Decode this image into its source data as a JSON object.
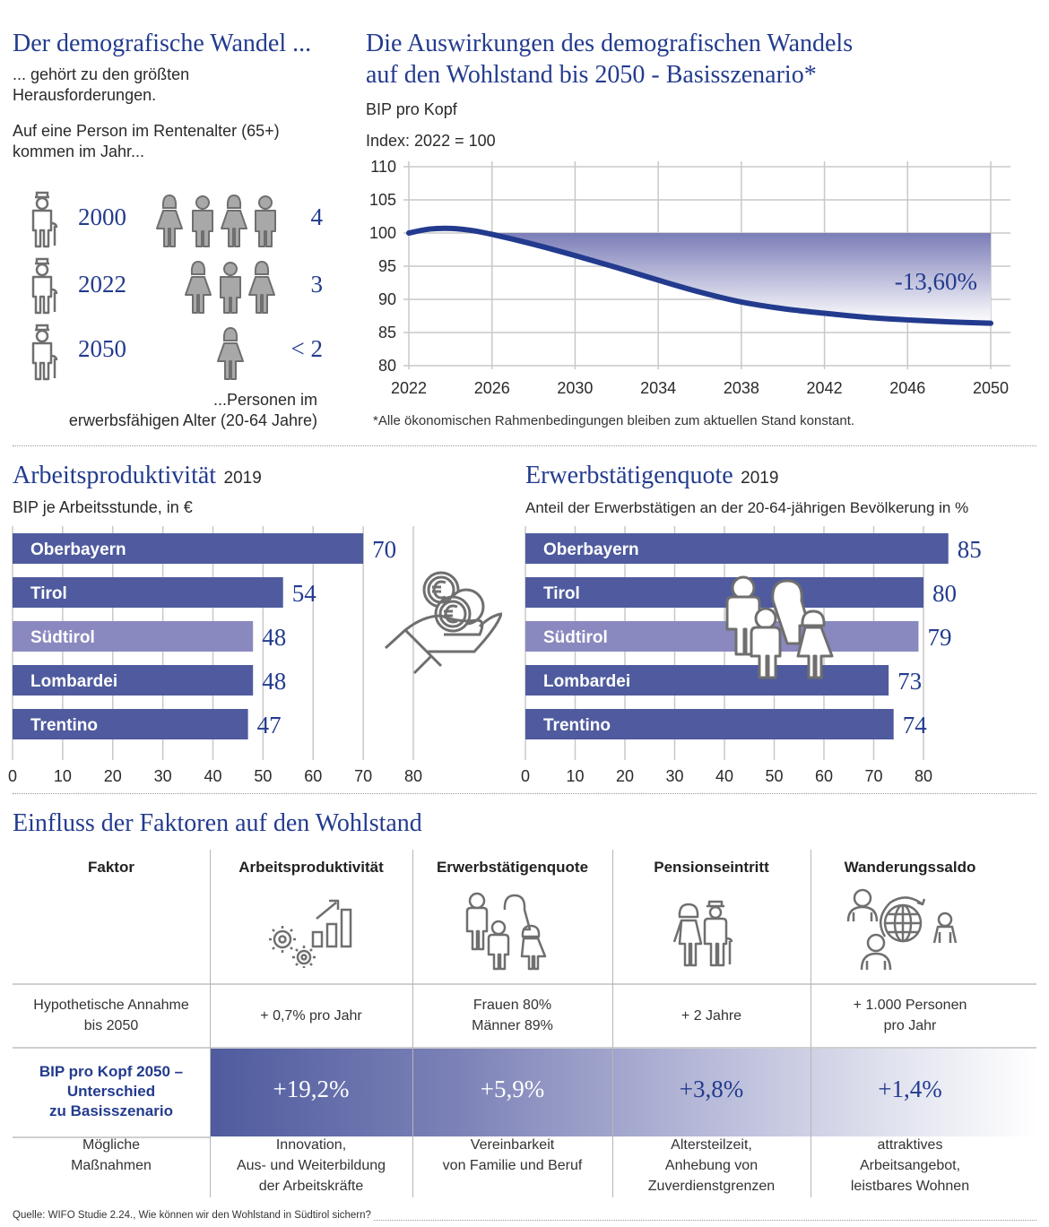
{
  "demografie": {
    "title": "Der demografische Wandel ...",
    "subtitle": "... gehört zu den größten Herausforderungen.",
    "subtitle_line1": "... gehört zu den größten",
    "subtitle_line2": "Herausforderungen.",
    "intro_line1": "Auf eine Person im Rentenalter (65+)",
    "intro_line2": "kommen im Jahr...",
    "rows": [
      {
        "year": "2000",
        "workers_icons": 4,
        "value": "4"
      },
      {
        "year": "2022",
        "workers_icons": 3,
        "value": "3"
      },
      {
        "year": "2050",
        "workers_icons": 1.5,
        "value": "< 2"
      }
    ],
    "footer_line1": "...Personen im",
    "footer_line2": "erwerbsfähigen Alter (20-64 Jahre)",
    "icon_retiree": "elderly-person-icon",
    "icon_worker": "working-age-person-icon"
  },
  "chart_data": [
    {
      "type": "area",
      "title": "Die Auswirkungen des demografischen Wandels auf den Wohlstand bis 2050 - Basisszenario*",
      "title_line1": "Die Auswirkungen des demografischen Wandels",
      "title_line2": "auf den Wohlstand bis 2050 - Basisszenario*",
      "subtitle": "BIP pro Kopf",
      "ylabel": "Index: 2022 = 100",
      "xlabel": "",
      "x": [
        2022,
        2023,
        2024,
        2025,
        2026,
        2028,
        2030,
        2032,
        2034,
        2036,
        2038,
        2040,
        2042,
        2044,
        2046,
        2048,
        2050
      ],
      "values": [
        100,
        100.6,
        100.7,
        100.4,
        99.8,
        98.3,
        96.6,
        94.8,
        92.9,
        91.1,
        89.6,
        88.6,
        87.9,
        87.3,
        86.9,
        86.6,
        86.4
      ],
      "reference_value": 100,
      "shaded_between_reference_and_line": true,
      "annotation": "-13,60%",
      "xticks": [
        "2022",
        "2026",
        "2030",
        "2034",
        "2038",
        "2042",
        "2046",
        "2050"
      ],
      "yticks": [
        "80",
        "85",
        "90",
        "95",
        "100",
        "105",
        "110"
      ],
      "xlim": [
        2022,
        2050
      ],
      "ylim": [
        80,
        110
      ],
      "grid": true,
      "footnote": "*Alle ökonomischen Rahmenbedingungen bleiben zum aktuellen Stand konstant.",
      "line_color": "#233b8e",
      "fill_color": "#6e72b0"
    },
    {
      "type": "bar",
      "orientation": "horizontal",
      "title": "Arbeitsproduktivität",
      "title_year": "2019",
      "subtitle": "BIP je Arbeitsstunde, in €",
      "categories": [
        "Oberbayern",
        "Tirol",
        "Südtirol",
        "Lombardei",
        "Trentino"
      ],
      "values": [
        70,
        54,
        48,
        48,
        47
      ],
      "highlight": "Südtirol",
      "xticks": [
        "0",
        "10",
        "20",
        "30",
        "40",
        "50",
        "60",
        "70",
        "80"
      ],
      "xlim": [
        0,
        80
      ],
      "grid": true,
      "bar_color": "#4f5b9e",
      "highlight_color": "#8a89bf",
      "icon": "euro-coins-in-hand-icon"
    },
    {
      "type": "bar",
      "orientation": "horizontal",
      "title": "Erwerbstätigenquote",
      "title_year": "2019",
      "subtitle": "Anteil der Erwerbstätigen an der 20-64-jährigen Bevölkerung in %",
      "categories": [
        "Oberbayern",
        "Tirol",
        "Südtirol",
        "Lombardei",
        "Trentino"
      ],
      "values": [
        85,
        80,
        79,
        73,
        74
      ],
      "highlight": "Südtirol",
      "xticks": [
        "0",
        "10",
        "20",
        "30",
        "40",
        "50",
        "60",
        "70",
        "80"
      ],
      "xlim": [
        0,
        80
      ],
      "grid": true,
      "bar_color": "#4f5b9e",
      "highlight_color": "#8a89bf",
      "icon": "family-icon"
    },
    {
      "type": "table",
      "title": "Einfluss der Faktoren auf den Wohlstand",
      "row_headers": {
        "factor": "Faktor",
        "assumption": "Hypothetische Annahme bis 2050",
        "assumption_lines": [
          "Hypothetische Annahme",
          "bis 2050"
        ],
        "effect_lines": [
          "BIP pro Kopf 2050 –",
          "Unterschied",
          "zu Basisszenario"
        ],
        "measures_lines": [
          "Mögliche",
          "Maßnahmen"
        ]
      },
      "columns": [
        {
          "factor": "Arbeitsproduktivität",
          "icon": "gears-growth-chart-icon",
          "assumption_lines": [
            "+ 0,7% pro Jahr"
          ],
          "effect": "+19,2%",
          "effect_value": 19.2,
          "measures_lines": [
            "Innovation,",
            "Aus- und Weiterbildung",
            "der Arbeitskräfte"
          ]
        },
        {
          "factor": "Erwerbstätigenquote",
          "icon": "family-icon",
          "assumption_lines": [
            "Frauen 80%",
            "Männer 89%"
          ],
          "effect": "+5,9%",
          "effect_value": 5.9,
          "measures_lines": [
            "Vereinbarkeit",
            "von Familie und Beruf"
          ]
        },
        {
          "factor": "Pensionseintritt",
          "icon": "elderly-couple-icon",
          "assumption_lines": [
            "+ 2 Jahre"
          ],
          "effect": "+3,8%",
          "effect_value": 3.8,
          "measures_lines": [
            "Altersteilzeit,",
            "Anhebung von",
            "Zuverdienstgrenzen"
          ]
        },
        {
          "factor": "Wanderungssaldo",
          "icon": "migration-globe-icon",
          "assumption_lines": [
            "+ 1.000 Personen",
            "pro Jahr"
          ],
          "effect": "+1,4%",
          "effect_value": 1.4,
          "measures_lines": [
            "attraktives",
            "Arbeitsangebot,",
            "leistbares Wohnen"
          ]
        }
      ]
    }
  ],
  "source": "Quelle: WIFO Studie 2.24., Wie können wir den Wohlstand in Südtirol sichern?",
  "colors": {
    "accent": "#233b8e",
    "bar": "#4f5b9e",
    "highlight": "#8a89bf",
    "icon_gray": "#6f6f6f",
    "grid": "#c8c8c8"
  }
}
